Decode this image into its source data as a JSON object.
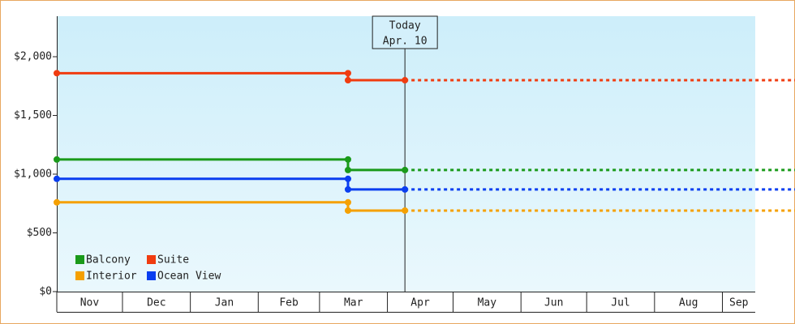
{
  "chart_data": {
    "type": "step-line",
    "xlim": [
      0,
      319
    ],
    "xticks": [
      {
        "value": 0,
        "label": "Nov"
      },
      {
        "value": 30,
        "label": "Dec"
      },
      {
        "value": 61,
        "label": "Jan"
      },
      {
        "value": 92,
        "label": "Feb"
      },
      {
        "value": 120,
        "label": "Mar"
      },
      {
        "value": 151,
        "label": "Apr"
      },
      {
        "value": 181,
        "label": "May"
      },
      {
        "value": 212,
        "label": "Jun"
      },
      {
        "value": 242,
        "label": "Jul"
      },
      {
        "value": 273,
        "label": "Aug"
      },
      {
        "value": 304,
        "label": "Sep"
      }
    ],
    "ylim": [
      0,
      2345
    ],
    "yticks": [
      {
        "value": 0,
        "label": "$0"
      },
      {
        "value": 500,
        "label": "$500"
      },
      {
        "value": 1000,
        "label": "$1,000"
      },
      {
        "value": 1500,
        "label": "$1,500"
      },
      {
        "value": 2000,
        "label": "$2,000"
      }
    ],
    "today": {
      "title": "Today",
      "label": "Apr. 10",
      "x": 159
    },
    "legend": "bottom-left",
    "series": [
      {
        "name": "Balcony",
        "color": "#1a9a1a",
        "x": [
          0,
          133,
          133,
          159
        ],
        "values": [
          1125,
          1125,
          1035,
          1035
        ]
      },
      {
        "name": "Suite",
        "color": "#f03c10",
        "x": [
          0,
          133,
          133,
          159
        ],
        "values": [
          1860,
          1860,
          1800,
          1800
        ]
      },
      {
        "name": "Interior",
        "color": "#f5a000",
        "x": [
          0,
          133,
          133,
          159
        ],
        "values": [
          760,
          760,
          690,
          690
        ]
      },
      {
        "name": "Ocean View",
        "color": "#0a3ef0",
        "x": [
          0,
          133,
          133,
          159
        ],
        "values": [
          960,
          960,
          870,
          870
        ]
      }
    ]
  }
}
